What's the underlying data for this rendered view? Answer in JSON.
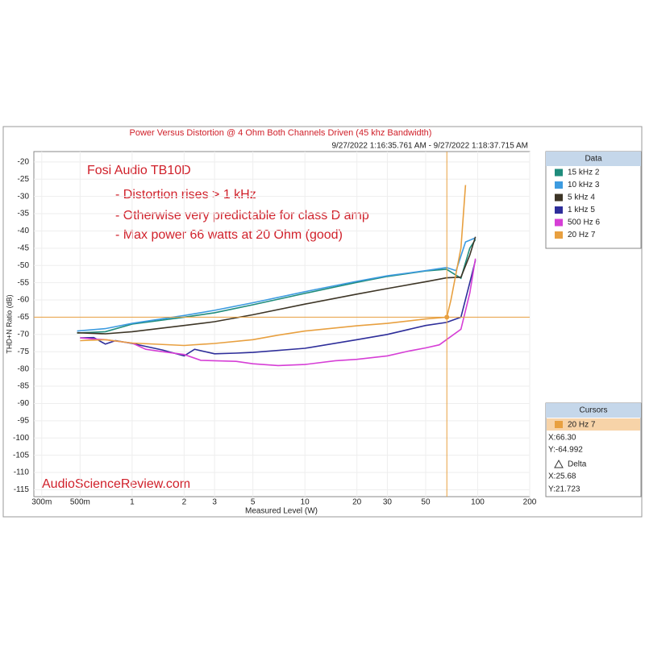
{
  "chart_data": {
    "type": "line",
    "title": "Power Versus Distortion @ 4 Ohm Both Channels Driven (45 khz Bandwidth)",
    "subtitle": "9/27/2022 1:16:35.761 AM - 9/27/2022 1:18:37.715 AM",
    "x_label": "Measured Level (W)",
    "y_label": "THD+N Ratio (dB)",
    "xscale": "log",
    "xlim": [
      0.27,
      200
    ],
    "ylim": [
      -117,
      -17
    ],
    "xticks": [
      {
        "value": 0.3,
        "label": "300m"
      },
      {
        "value": 0.5,
        "label": "500m"
      },
      1,
      2,
      3,
      5,
      10,
      20,
      30,
      50,
      100,
      200
    ],
    "yticks": [
      -20,
      -25,
      -30,
      -35,
      -40,
      -45,
      -50,
      -55,
      -60,
      -65,
      -70,
      -75,
      -80,
      -85,
      -90,
      -95,
      -100,
      -105,
      -110,
      -115
    ],
    "grid": true,
    "annotations": [
      "Fosi Audio TB10D",
      "- Distortion rises > 1 kHz",
      "- Otherwise very predictable for class D amp",
      "- Max power 66 watts at 20 Ohm (good)"
    ],
    "watermark": "AudioScienceReview.com",
    "legend_title": "Data",
    "series": [
      {
        "name": "15 kHz 2",
        "color": "#1f8c7c",
        "x": [
          0.48,
          0.7,
          1,
          2,
          3,
          5,
          10,
          20,
          30,
          50,
          66,
          80,
          90,
          97
        ],
        "values": [
          -69.6,
          -69.2,
          -67,
          -65,
          -63.7,
          -61.4,
          -58.1,
          -54.9,
          -53.2,
          -51.6,
          -51.1,
          -53.7,
          -45,
          -42.5
        ]
      },
      {
        "name": "10 kHz 3",
        "color": "#3d9be0",
        "x": [
          0.48,
          0.7,
          1,
          2,
          3,
          5,
          10,
          20,
          30,
          50,
          66,
          75,
          85,
          97
        ],
        "values": [
          -69,
          -68.3,
          -66.8,
          -64.5,
          -63,
          -60.8,
          -57.6,
          -54.6,
          -53,
          -51.5,
          -50.6,
          -51.5,
          -43.2,
          -42
        ]
      },
      {
        "name": "5 kHz 4",
        "color": "#3d3526",
        "x": [
          0.48,
          0.7,
          1,
          2,
          3,
          5,
          10,
          20,
          30,
          50,
          66,
          80,
          90,
          97
        ],
        "values": [
          -69.5,
          -69.8,
          -69.2,
          -67.4,
          -66.3,
          -64.3,
          -61.2,
          -58.3,
          -56.7,
          -54.7,
          -53.6,
          -53.4,
          -47,
          -41.7
        ]
      },
      {
        "name": "1 kHz 5",
        "color": "#2e2e9a",
        "x": [
          0.5,
          0.6,
          0.7,
          0.8,
          1,
          1.5,
          2,
          2.3,
          3,
          4,
          5,
          10,
          20,
          30,
          50,
          66,
          80,
          90,
          97
        ],
        "values": [
          -71,
          -70.9,
          -72.8,
          -71.8,
          -72.6,
          -74.5,
          -76.2,
          -74.3,
          -75.6,
          -75.4,
          -75.2,
          -74,
          -71.5,
          -70,
          -67.4,
          -66.5,
          -65,
          -55,
          -48.5
        ]
      },
      {
        "name": "500 Hz 6",
        "color": "#d63fd6",
        "x": [
          0.5,
          0.6,
          0.7,
          0.8,
          1,
          1.2,
          1.5,
          2,
          2.5,
          3,
          4,
          5,
          7,
          10,
          15,
          20,
          30,
          40,
          50,
          60,
          80,
          90,
          97
        ],
        "values": [
          -71,
          -71.3,
          -71.5,
          -71.9,
          -72.5,
          -74.3,
          -75,
          -75.8,
          -77.5,
          -77.6,
          -77.8,
          -78.5,
          -79,
          -78.7,
          -77.6,
          -77.2,
          -76.2,
          -74.8,
          -73.9,
          -73,
          -68.5,
          -58,
          -48
        ]
      },
      {
        "name": "20 Hz 7",
        "color": "#e8a040",
        "x": [
          0.5,
          0.7,
          1,
          2,
          3,
          5,
          7,
          10,
          20,
          30,
          50,
          66.3,
          70,
          80,
          85
        ],
        "values": [
          -71.8,
          -71.5,
          -72.5,
          -73.2,
          -72.6,
          -71.5,
          -70.2,
          -69,
          -67.5,
          -66.8,
          -65.5,
          -64.992,
          -60,
          -45,
          -26.7
        ]
      }
    ],
    "cursor": {
      "x": 66.3,
      "y": -64.992,
      "color": "#e8a040"
    },
    "cursor_panel": {
      "title": "Cursors",
      "series": "20 Hz 7",
      "x": "X:66.30",
      "y": "Y:-64.992",
      "delta": "Delta",
      "dx": "X:25.68",
      "dy": "Y:21.723"
    }
  }
}
